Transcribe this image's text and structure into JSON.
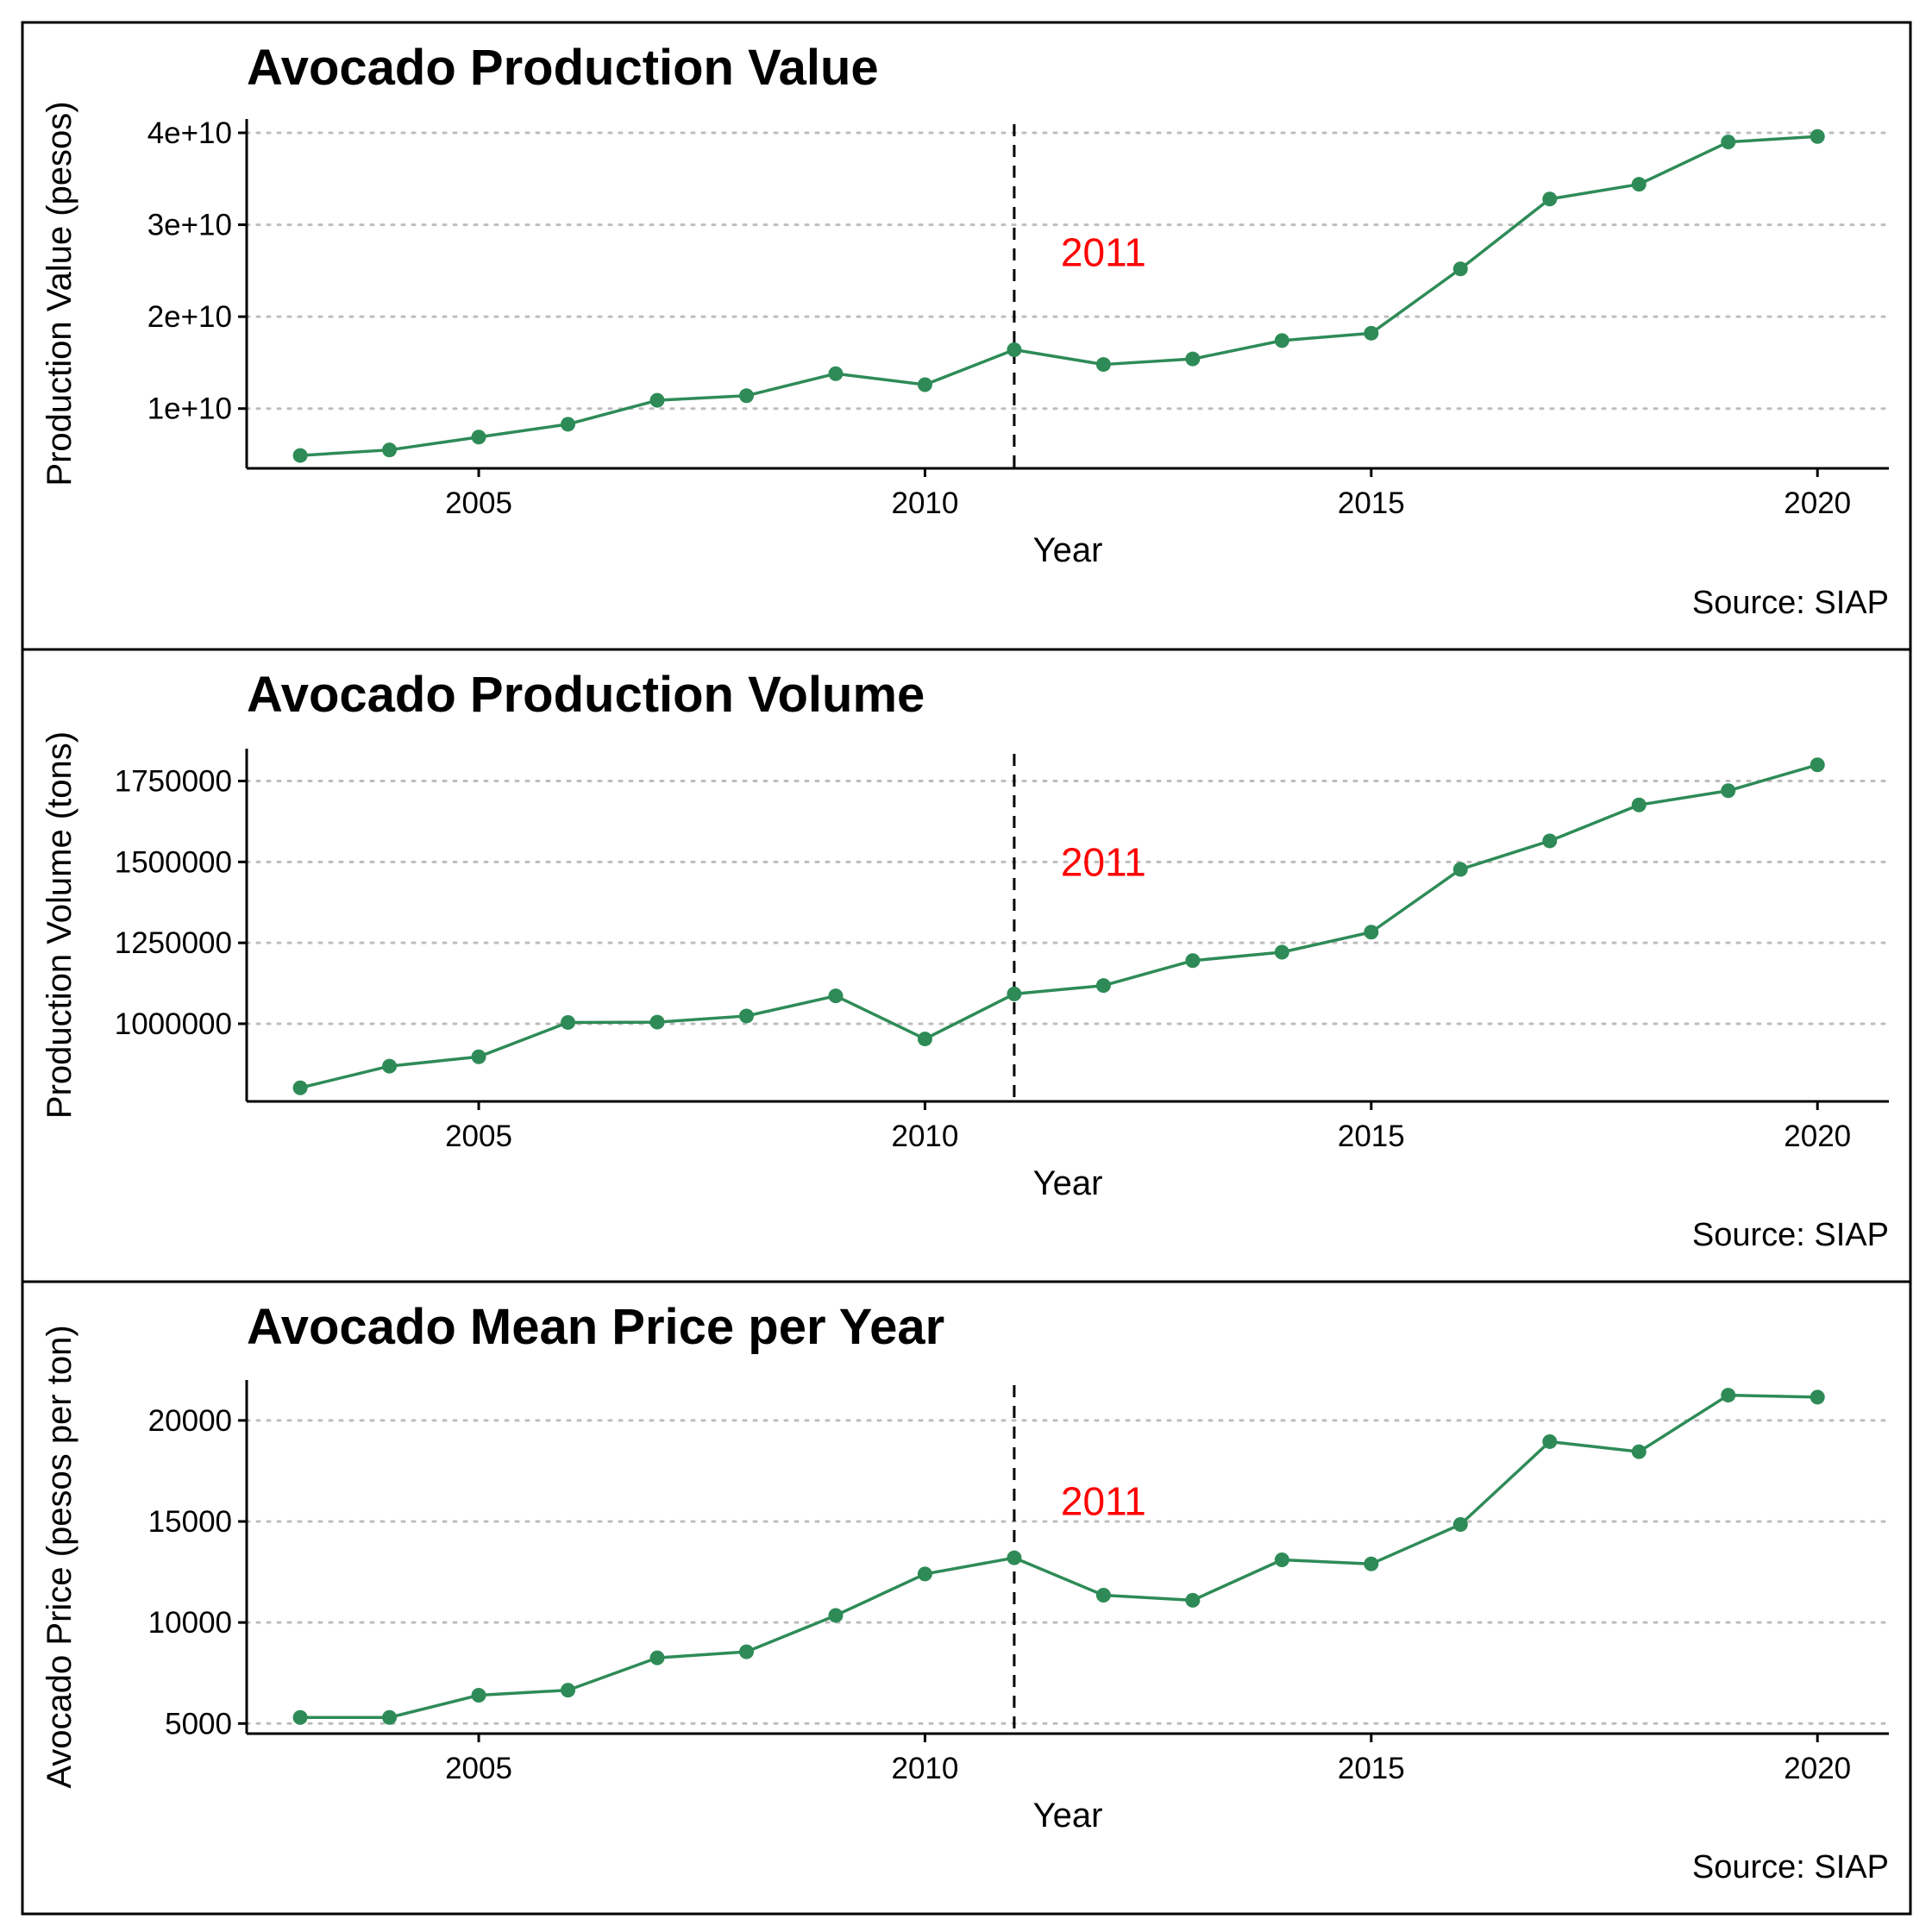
{
  "colors": {
    "line": "#2e8b57",
    "annotation": "#ff0000",
    "grid": "#bdbdbd",
    "panel_border": "#000000"
  },
  "chart_data": [
    {
      "type": "line",
      "title": "Avocado Production Value",
      "xlabel": "Year",
      "ylabel": "Production Value (pesos)",
      "caption": "Source: SIAP",
      "xlim": [
        2002.4,
        2020.8
      ],
      "ylim": [
        3500000000,
        41500000000
      ],
      "x_ticks": [
        2005,
        2010,
        2015,
        2020
      ],
      "x_tick_labels": [
        "2005",
        "2010",
        "2015",
        "2020"
      ],
      "y_ticks": [
        10000000000,
        20000000000,
        30000000000,
        40000000000
      ],
      "y_tick_labels": [
        "1e+10",
        "2e+10",
        "3e+10",
        "4e+10"
      ],
      "grid": "horizontal-dotted",
      "vline": {
        "x": 2011,
        "style": "dashed"
      },
      "annotation": {
        "text": "2011",
        "x": 2012,
        "y": 27000000000
      },
      "series": [
        {
          "x": [
            2003,
            2004,
            2005,
            2006,
            2007,
            2008,
            2009,
            2010,
            2011,
            2012,
            2013,
            2014,
            2015,
            2016,
            2017,
            2018,
            2019,
            2020
          ],
          "values": [
            4900000000,
            5500000000,
            6900000000,
            8300000000,
            10900000000,
            11400000000,
            13800000000,
            12600000000,
            16400000000,
            14800000000,
            15400000000,
            17400000000,
            18200000000,
            25200000000,
            32800000000,
            34400000000,
            39000000000,
            39600000000
          ]
        }
      ]
    },
    {
      "type": "line",
      "title": "Avocado Production Volume",
      "xlabel": "Year",
      "ylabel": "Production Volume (tons)",
      "caption": "Source: SIAP",
      "xlim": [
        2002.4,
        2020.8
      ],
      "ylim": [
        760000,
        1850000
      ],
      "x_ticks": [
        2005,
        2010,
        2015,
        2020
      ],
      "x_tick_labels": [
        "2005",
        "2010",
        "2015",
        "2020"
      ],
      "y_ticks": [
        1000000,
        1250000,
        1500000,
        1750000
      ],
      "y_tick_labels": [
        "1000000",
        "1250000",
        "1500000",
        "1750000"
      ],
      "grid": "horizontal-dotted",
      "vline": {
        "x": 2011,
        "style": "dashed"
      },
      "annotation": {
        "text": "2011",
        "x": 2012,
        "y": 1500000
      },
      "series": [
        {
          "x": [
            2003,
            2004,
            2005,
            2006,
            2007,
            2008,
            2009,
            2010,
            2011,
            2012,
            2013,
            2014,
            2015,
            2016,
            2017,
            2018,
            2019,
            2020
          ],
          "values": [
            802000,
            869000,
            898000,
            1004000,
            1005000,
            1024000,
            1086000,
            953000,
            1092000,
            1118000,
            1195000,
            1221000,
            1283000,
            1477000,
            1565000,
            1676000,
            1720000,
            1800000
          ]
        }
      ]
    },
    {
      "type": "line",
      "title": "Avocado Mean Price per Year",
      "xlabel": "Year",
      "ylabel": "Avocado Price (pesos per ton)",
      "caption": "Source: SIAP",
      "xlim": [
        2002.4,
        2020.8
      ],
      "ylim": [
        4500,
        22000
      ],
      "x_ticks": [
        2005,
        2010,
        2015,
        2020
      ],
      "x_tick_labels": [
        "2005",
        "2010",
        "2015",
        "2020"
      ],
      "y_ticks": [
        5000,
        10000,
        15000,
        20000
      ],
      "y_tick_labels": [
        "5000",
        "10000",
        "15000",
        "20000"
      ],
      "grid": "horizontal-dotted",
      "vline": {
        "x": 2011,
        "style": "dashed"
      },
      "annotation": {
        "text": "2011",
        "x": 2012,
        "y": 16000
      },
      "series": [
        {
          "x": [
            2003,
            2004,
            2005,
            2006,
            2007,
            2008,
            2009,
            2010,
            2011,
            2012,
            2013,
            2014,
            2015,
            2016,
            2017,
            2018,
            2019,
            2020
          ],
          "values": [
            5300,
            5300,
            6400,
            6650,
            8250,
            8550,
            10350,
            12400,
            13200,
            11350,
            11100,
            13100,
            12900,
            14850,
            18950,
            18450,
            21250,
            21150
          ]
        }
      ]
    }
  ]
}
